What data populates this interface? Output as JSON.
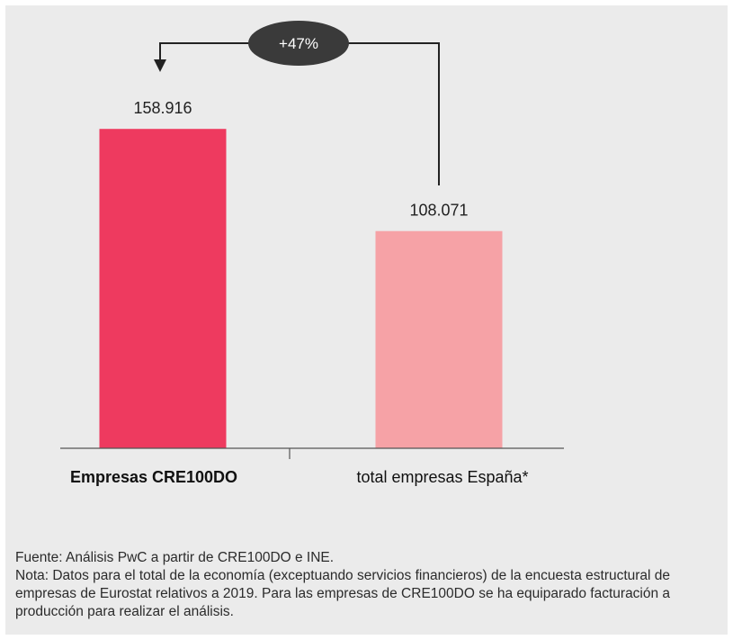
{
  "chart_data": {
    "type": "bar",
    "categories": [
      "Empresas CRE100DO",
      "total empresas España*"
    ],
    "values": [
      158916,
      108071
    ],
    "value_labels": [
      "158.916",
      "108.071"
    ],
    "ylim": [
      0,
      172000
    ],
    "grid": false,
    "colors": [
      "#ee3a5f",
      "#f6a2a6"
    ],
    "annotation": {
      "label": "+47%"
    }
  },
  "notes": {
    "source": "Fuente: Análisis PwC a partir de CRE100DO e INE.",
    "note": "Nota: Datos para el total de la economía (exceptuando servicios financieros) de la encuesta estructural de empresas de Eurostat relativos a 2019. Para las empresas de CRE100DO se ha equiparado facturación a producción para realizar el análisis."
  }
}
